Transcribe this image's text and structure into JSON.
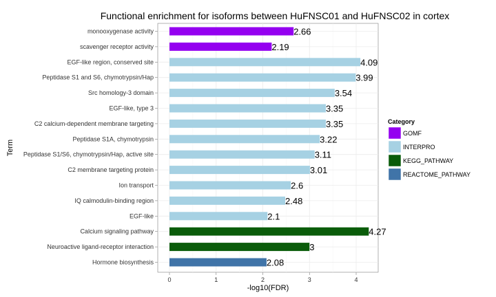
{
  "chart_data": {
    "type": "bar",
    "orientation": "horizontal",
    "title": "Functional enrichment for isoforms between HuFNSC01 and HuFNSC02 in cortex",
    "xlabel": "-log10(FDR)",
    "ylabel": "Term",
    "xlim": [
      0,
      4.35
    ],
    "xticks": [
      "0",
      "1",
      "2",
      "3",
      "4"
    ],
    "grid": true,
    "legend": {
      "title": "Category",
      "position": "right",
      "items": [
        {
          "label": "GOMF",
          "color": "#9400f0"
        },
        {
          "label": "INTERPRO",
          "color": "#a6d1e3"
        },
        {
          "label": "KEGG_PATHWAY",
          "color": "#0a5c0a"
        },
        {
          "label": "REACTOME_PATHWAY",
          "color": "#4074a8"
        }
      ]
    },
    "bars": [
      {
        "term": "monooxygenase activity",
        "value": 2.66,
        "label": "2.66",
        "category": "GOMF"
      },
      {
        "term": "scavenger receptor activity",
        "value": 2.19,
        "label": "2.19",
        "category": "GOMF"
      },
      {
        "term": "EGF-like region, conserved site",
        "value": 4.09,
        "label": "4.09",
        "category": "INTERPRO"
      },
      {
        "term": "Peptidase S1 and S6, chymotrypsin/Hap",
        "value": 3.99,
        "label": "3.99",
        "category": "INTERPRO"
      },
      {
        "term": "Src homology-3 domain",
        "value": 3.54,
        "label": "3.54",
        "category": "INTERPRO"
      },
      {
        "term": "EGF-like, type 3",
        "value": 3.35,
        "label": "3.35",
        "category": "INTERPRO"
      },
      {
        "term": "C2 calcium-dependent membrane targeting",
        "value": 3.35,
        "label": "3.35",
        "category": "INTERPRO"
      },
      {
        "term": "Peptidase S1A, chymotrypsin",
        "value": 3.22,
        "label": "3.22",
        "category": "INTERPRO"
      },
      {
        "term": "Peptidase S1/S6, chymotrypsin/Hap, active site",
        "value": 3.11,
        "label": "3.11",
        "category": "INTERPRO"
      },
      {
        "term": "C2 membrane targeting protein",
        "value": 3.01,
        "label": "3.01",
        "category": "INTERPRO"
      },
      {
        "term": "Ion transport",
        "value": 2.6,
        "label": "2.6",
        "category": "INTERPRO"
      },
      {
        "term": "IQ calmodulin-binding region",
        "value": 2.48,
        "label": "2.48",
        "category": "INTERPRO"
      },
      {
        "term": "EGF-like",
        "value": 2.1,
        "label": "2.1",
        "category": "INTERPRO"
      },
      {
        "term": "Calcium signaling pathway",
        "value": 4.27,
        "label": "4.27",
        "category": "KEGG_PATHWAY"
      },
      {
        "term": "Neuroactive ligand-receptor interaction",
        "value": 3.0,
        "label": "3",
        "category": "KEGG_PATHWAY"
      },
      {
        "term": "Hormone biosynthesis",
        "value": 2.08,
        "label": "2.08",
        "category": "REACTOME_PATHWAY"
      }
    ]
  }
}
